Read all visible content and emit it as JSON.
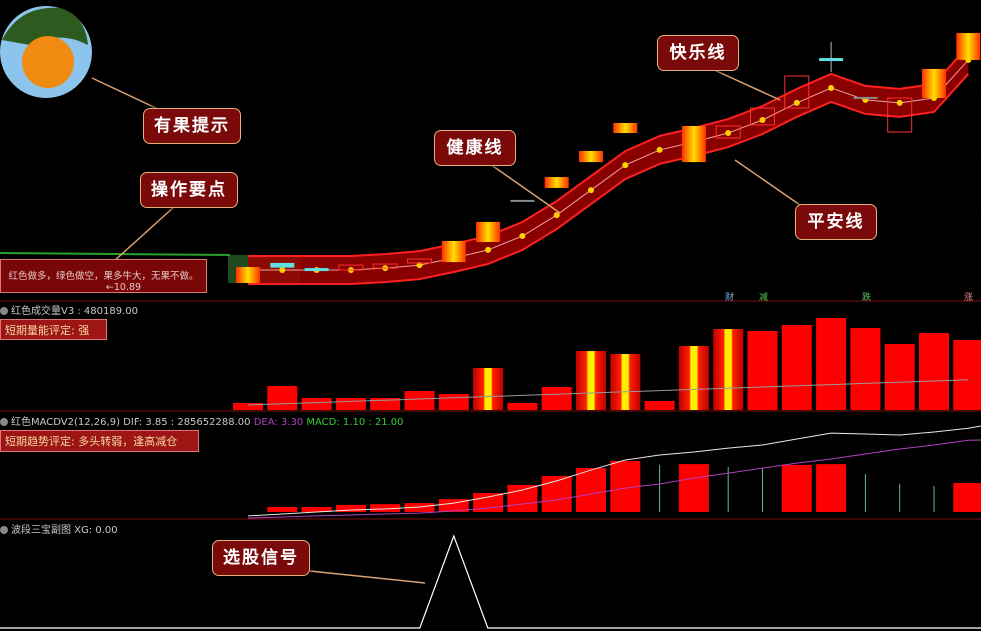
{
  "colors": {
    "up": "#ff0000",
    "gold": "#ffcc00",
    "cyan": "#5fe0e0",
    "band": "#a00000",
    "dif": "#e8e8e8",
    "dea": "#b040c0",
    "shrink": "#6ab0b0",
    "green": "#2aa02a"
  },
  "main": {
    "hint": "红色做多，绿色做空，果多牛大，无果不做。",
    "low_marker": "←10.89"
  },
  "signals": [
    {
      "label": "财",
      "color": "#4a7fb0"
    },
    {
      "label": "减",
      "color": "#2e8b2e"
    },
    {
      "label": "跌",
      "color": "#2e8b2e"
    },
    {
      "label": "涨",
      "color": "#a02828"
    }
  ],
  "volume_panel": {
    "title": "红色成交量V3 : 480189.00",
    "rating": "短期量能评定: 强"
  },
  "macd_panel": {
    "title": "红色MACDV2(12,26,9)",
    "dif": "DIF: 3.85 : 285652288.00",
    "dea": "DEA: 3.30",
    "macd": "MACD: 1.10 : 21.00",
    "rating": "短期趋势评定: 多头转弱，逢高减仓"
  },
  "xg_panel": {
    "title": "波段三宝副图 XG: 0.00"
  },
  "callouts": {
    "fruit": "有果提示",
    "key_points": "操作要点",
    "health": "健康线",
    "happy": "快乐线",
    "safe": "平安线",
    "select": "选股信号"
  },
  "chart_data": [
    {
      "type": "candlestick",
      "title": "",
      "note": "prices estimated; no price axis printed",
      "candles": [
        {
          "o": 10.28,
          "c": 11.03,
          "style": "gold"
        },
        {
          "o": 11.0,
          "c": 11.22,
          "style": "cyan"
        },
        {
          "o": 10.98,
          "c": 10.98,
          "style": "cyan"
        },
        {
          "o": 10.89,
          "c": 11.12,
          "style": "hollow"
        },
        {
          "o": 10.98,
          "c": 11.17,
          "style": "hollow"
        },
        {
          "o": 11.22,
          "c": 11.4,
          "style": "hollow"
        },
        {
          "o": 11.26,
          "c": 12.25,
          "style": "gold"
        },
        {
          "o": 12.2,
          "c": 13.14,
          "style": "gold"
        },
        {
          "o": 14.17,
          "c": 14.17,
          "style": "dash"
        },
        {
          "o": 14.73,
          "c": 15.24,
          "style": "gold"
        },
        {
          "o": 15.94,
          "c": 16.46,
          "style": "gold"
        },
        {
          "o": 17.3,
          "c": 17.77,
          "style": "gold"
        },
        null,
        {
          "o": 15.94,
          "c": 17.63,
          "style": "gold"
        },
        {
          "o": 17.07,
          "c": 17.63,
          "style": "hollow"
        },
        {
          "o": 17.68,
          "c": 18.47,
          "style": "hollow"
        },
        {
          "o": 18.47,
          "c": 19.97,
          "style": "hollow"
        },
        {
          "o": 20.81,
          "c": 20.81,
          "h": 21.56,
          "l": 20.16,
          "style": "cyan"
        },
        {
          "o": 18.99,
          "c": 18.99,
          "style": "dash"
        },
        {
          "o": 17.35,
          "c": 18.94,
          "style": "hollow"
        },
        {
          "o": 18.94,
          "c": 20.3,
          "style": "gold"
        },
        {
          "o": 20.72,
          "c": 21.98,
          "style": "gold"
        }
      ],
      "health_line": [
        10.89,
        10.89,
        10.89,
        10.89,
        10.98,
        11.12,
        11.45,
        11.83,
        12.48,
        13.46,
        14.63,
        15.8,
        16.51,
        16.88,
        17.3,
        17.91,
        18.71,
        19.41,
        18.85,
        18.71,
        18.94,
        20.72
      ]
    },
    {
      "type": "bar",
      "title": "红色成交量V3",
      "values": [
        48020,
        164640,
        82320,
        82320,
        82320,
        130340,
        109760,
        288120,
        48020,
        157780,
        404740,
        384160,
        61740,
        439040,
        555660,
        541940,
        583100,
        631120,
        562520,
        452760,
        528220,
        480189
      ],
      "highlight": [
        false,
        false,
        false,
        false,
        false,
        false,
        false,
        true,
        false,
        false,
        true,
        true,
        false,
        true,
        true,
        false,
        false,
        false,
        false,
        false,
        false,
        false
      ]
    },
    {
      "type": "bar",
      "title": "红色MACDV2(12,26,9)",
      "macd": [
        0,
        0.19,
        0.19,
        0.27,
        0.3,
        0.34,
        0.49,
        0.72,
        1.03,
        1.37,
        1.67,
        1.94,
        1.79,
        1.82,
        1.71,
        1.67,
        1.79,
        1.82,
        1.44,
        1.06,
        0.99,
        1.1
      ],
      "macd_shrinking": [
        false,
        false,
        false,
        false,
        false,
        false,
        false,
        false,
        false,
        false,
        false,
        false,
        true,
        false,
        true,
        true,
        false,
        false,
        true,
        true,
        true,
        false
      ],
      "dif": [
        -0.18,
        -0.09,
        0,
        0.09,
        0.14,
        0.23,
        0.41,
        0.69,
        1.01,
        1.43,
        1.93,
        2.39,
        2.62,
        2.76,
        2.94,
        3.08,
        3.36,
        3.63,
        3.59,
        3.54,
        3.68,
        3.85
      ],
      "dea": [
        -0.28,
        -0.23,
        -0.18,
        -0.14,
        -0.09,
        -0.05,
        0.05,
        0.18,
        0.37,
        0.55,
        0.83,
        1.1,
        1.29,
        1.56,
        1.79,
        2.02,
        2.25,
        2.44,
        2.67,
        2.9,
        3.08,
        3.3
      ]
    },
    {
      "type": "line",
      "title": "波段三宝副图",
      "xg": [
        0,
        0,
        0,
        0,
        0,
        0,
        1,
        0,
        0,
        0,
        0,
        0,
        0,
        0,
        0,
        0,
        0,
        0,
        0,
        0,
        0,
        0
      ]
    }
  ]
}
